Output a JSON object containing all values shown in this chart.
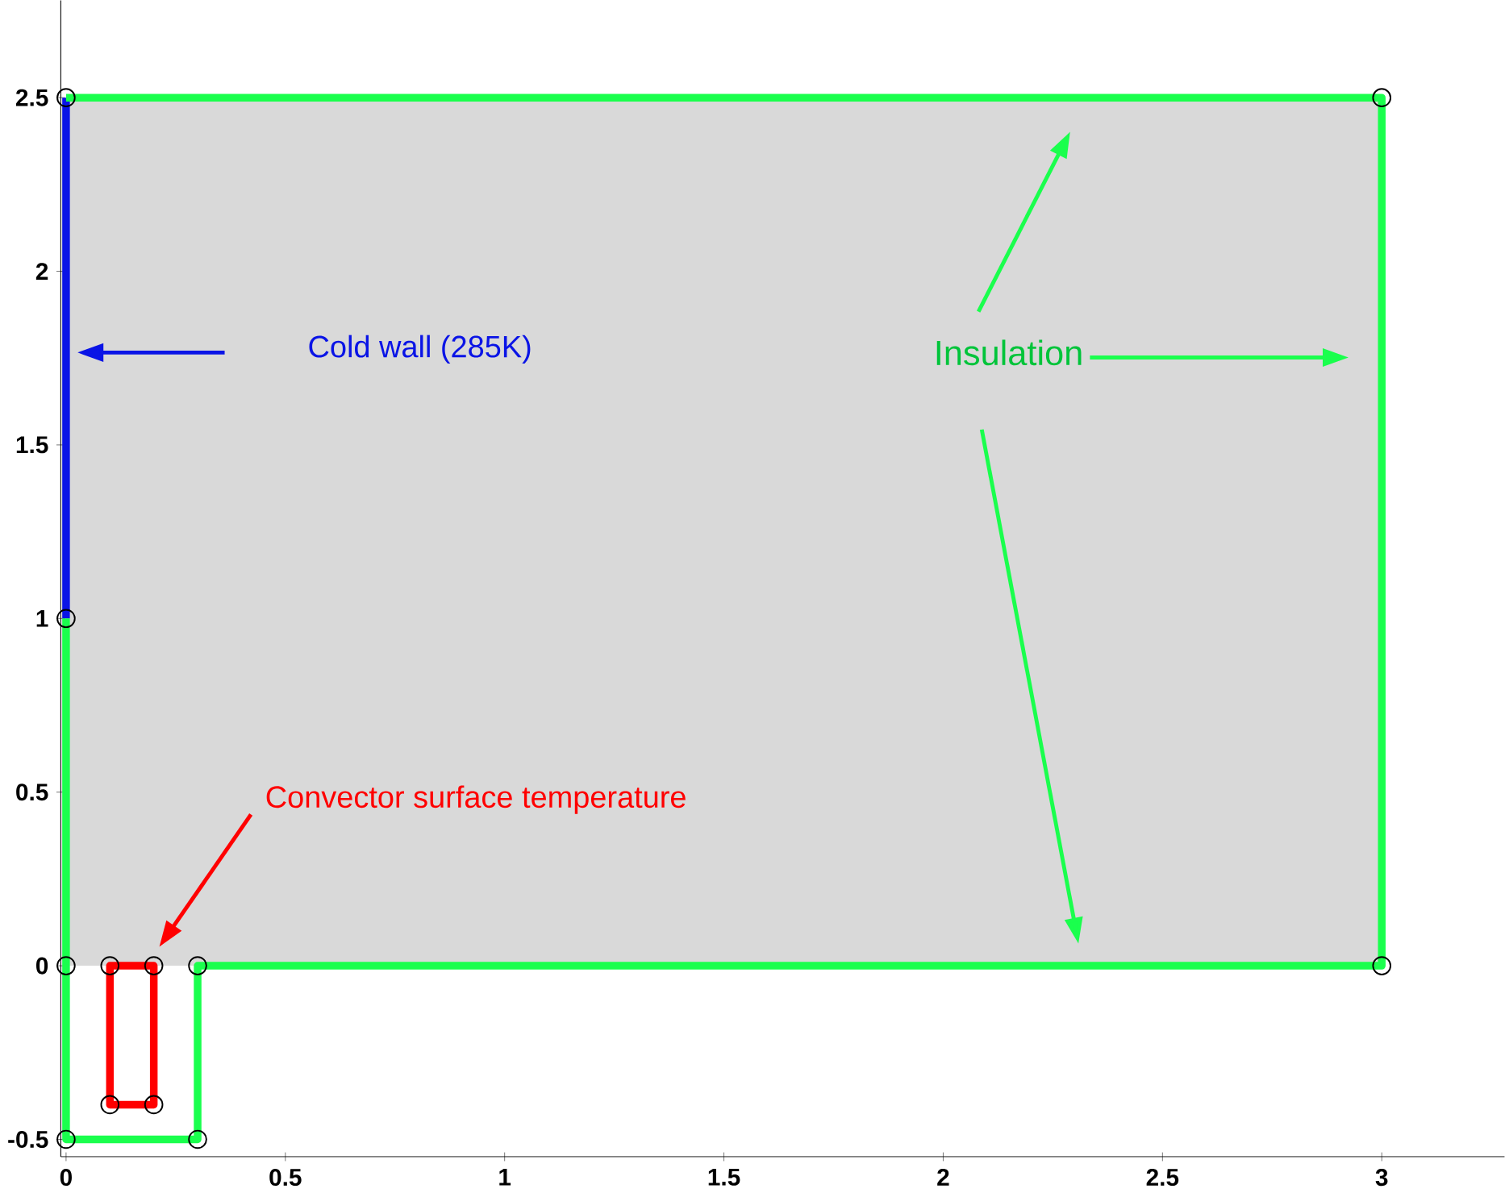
{
  "chart_data": {
    "type": "line",
    "xlim": [
      -0.012,
      3.28
    ],
    "ylim": [
      -0.55,
      2.78
    ],
    "xticks": [
      0,
      0.5,
      1,
      1.5,
      2,
      2.5,
      3
    ],
    "yticks": [
      -0.5,
      0,
      0.5,
      1,
      1.5,
      2,
      2.5
    ],
    "grid": false,
    "series": [
      {
        "type": "area",
        "color": "#d9d9d9",
        "x": [
          0,
          3,
          3,
          0
        ],
        "values": [
          0,
          0,
          2.5,
          2.5
        ]
      },
      {
        "color": "#0a14e6",
        "x": [
          0,
          0
        ],
        "values": [
          1,
          2.5
        ]
      },
      {
        "color": "#1aff4d",
        "x": [
          0,
          0,
          0.3,
          0.3,
          3,
          3,
          0
        ],
        "values": [
          1,
          -0.5,
          -0.5,
          0,
          0,
          2.5,
          2.5
        ]
      },
      {
        "type": "bar",
        "color": "#ff0000",
        "x": [
          0.15
        ],
        "base": [
          -0.4
        ],
        "values": [
          0.4
        ]
      },
      {
        "type": "scatter",
        "color": "#000000",
        "marker": "circle",
        "x": [
          0,
          3,
          0,
          0,
          0.1,
          0.2,
          0.3,
          3,
          0,
          0.3,
          0.1,
          0.2
        ],
        "values": [
          2.5,
          2.5,
          1,
          0,
          0,
          0,
          0,
          0,
          -0.5,
          -0.5,
          -0.4,
          -0.4
        ]
      }
    ],
    "annotations": [
      "Cold wall (285K)",
      "Insulation",
      "Convector surface temperature"
    ]
  }
}
